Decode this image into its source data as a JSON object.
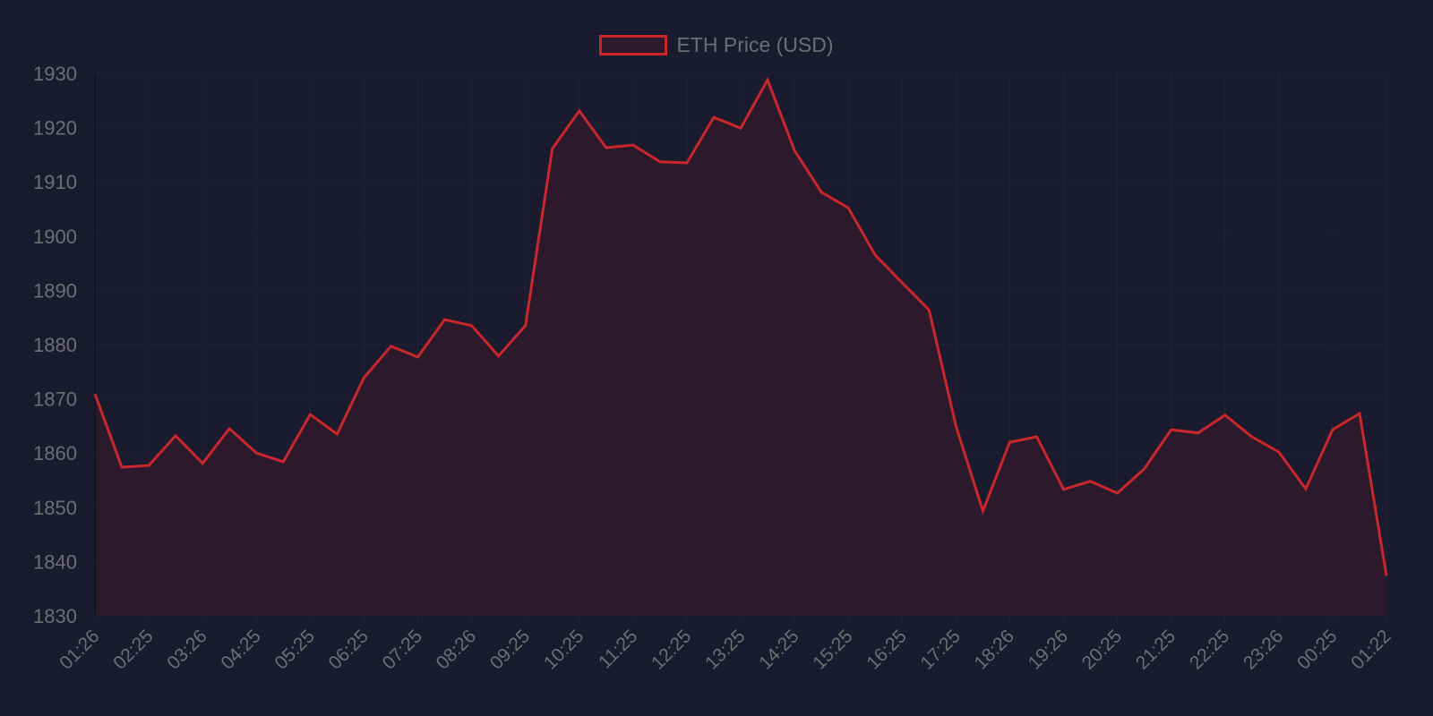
{
  "chart_data": {
    "type": "line",
    "title": "",
    "legend": [
      {
        "label": "ETH Price (USD)",
        "color": "#c9272b",
        "fill": "#2d1a2c"
      }
    ],
    "legend_position": "top",
    "xlabel": "",
    "ylabel": "",
    "ylim": [
      1830,
      1930
    ],
    "yticks": [
      1930,
      1920,
      1910,
      1900,
      1890,
      1880,
      1870,
      1860,
      1850,
      1840,
      1830
    ],
    "grid": true,
    "x_tick_labels": [
      "01:26",
      "02:25",
      "03:26",
      "04:25",
      "05:25",
      "06:25",
      "07:25",
      "08:26",
      "09:25",
      "10:25",
      "11:25",
      "12:25",
      "13:25",
      "14:25",
      "15:25",
      "16:25",
      "17:25",
      "18:26",
      "19:26",
      "20:25",
      "21:25",
      "22:25",
      "23:26",
      "00:25",
      "01:22"
    ],
    "series": [
      {
        "name": "ETH Price (USD)",
        "color": "#c9272b",
        "fill": true,
        "values": [
          1870.9,
          1857.4,
          1857.7,
          1863.2,
          1858.1,
          1864.5,
          1860.0,
          1858.4,
          1867.1,
          1863.5,
          1873.9,
          1879.7,
          1877.7,
          1884.6,
          1883.5,
          1877.9,
          1883.5,
          1916.1,
          1923.1,
          1916.3,
          1916.8,
          1913.7,
          1913.5,
          1921.9,
          1919.9,
          1928.8,
          1915.8,
          1908.1,
          1905.2,
          1896.5,
          1891.4,
          1886.4,
          1865.0,
          1849.3,
          1862.0,
          1863.0,
          1853.3,
          1854.8,
          1852.6,
          1857.1,
          1864.3,
          1863.7,
          1867.0,
          1863.0,
          1860.2,
          1853.4,
          1864.3,
          1867.3,
          1837.4
        ]
      }
    ]
  },
  "colors": {
    "background": "#1a1b2e",
    "line": "#c9272b",
    "fill": "#2d1a2c",
    "grid": "#232236",
    "axis": "#111120",
    "tick_text": "#6e6e73"
  }
}
